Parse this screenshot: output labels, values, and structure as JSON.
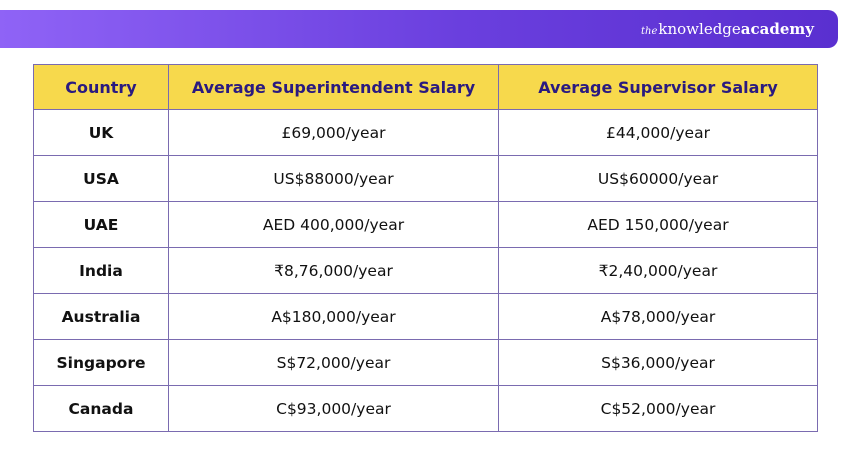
{
  "brand": {
    "prefix": "the",
    "word1": "knowledge",
    "word2": "academy"
  },
  "colors": {
    "banner_start": "#8f63f6",
    "banner_end": "#5a2fd0",
    "header_bg": "#f7d94c",
    "header_text": "#2a1a80",
    "border": "#7a6bb0"
  },
  "table": {
    "headers": [
      "Country",
      "Average Superintendent Salary",
      "Average Supervisor Salary"
    ],
    "rows": [
      [
        "UK",
        "£69,000/year",
        "£44,000/year"
      ],
      [
        "USA",
        "US$88000/year",
        "US$60000/year"
      ],
      [
        "UAE",
        "AED 400,000/year",
        "AED 150,000/year"
      ],
      [
        "India",
        "₹8,76,000/year",
        "₹2,40,000/year"
      ],
      [
        "Australia",
        "A$180,000/year",
        "A$78,000/year"
      ],
      [
        "Singapore",
        "S$72,000/year",
        "S$36,000/year"
      ],
      [
        "Canada",
        "C$93,000/year",
        "C$52,000/year"
      ]
    ]
  }
}
